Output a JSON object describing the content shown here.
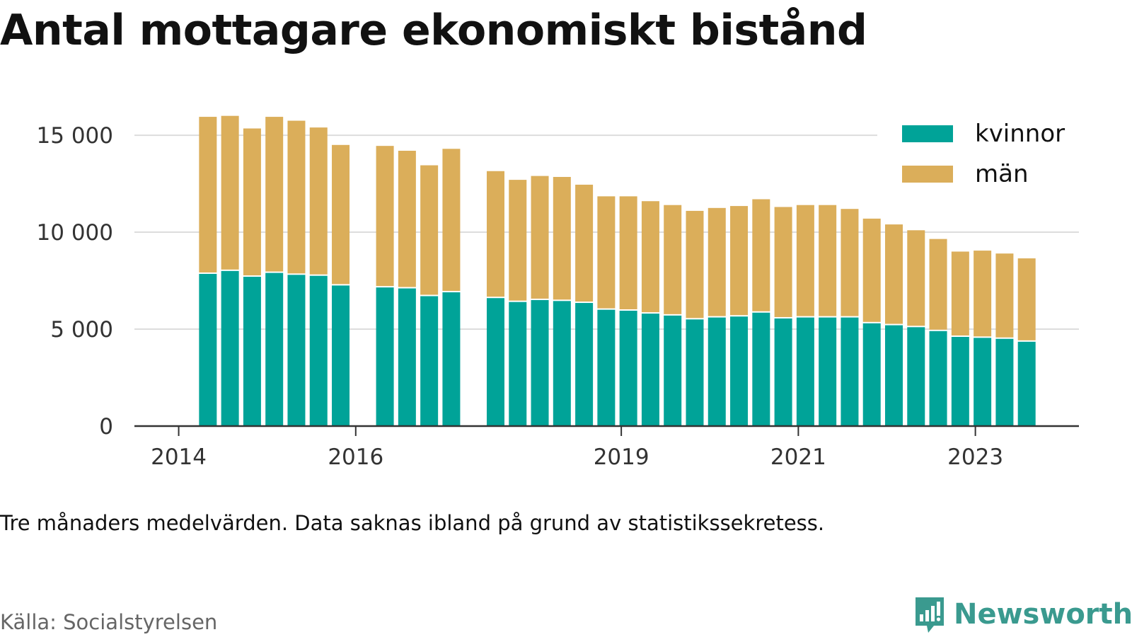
{
  "chart_data": {
    "type": "bar",
    "stacked": true,
    "title": "Antal mottagare ekonomiskt bistånd",
    "xlabel": "",
    "ylabel": "",
    "ylim": [
      0,
      16500
    ],
    "y_ticks": [
      {
        "value": 0,
        "label": "0"
      },
      {
        "value": 5000,
        "label": "5 000"
      },
      {
        "value": 10000,
        "label": "10 000"
      },
      {
        "value": 15000,
        "label": "15 000"
      }
    ],
    "x_ticks": [
      {
        "value": 2014.0,
        "label": "2014"
      },
      {
        "value": 2016.0,
        "label": "2016"
      },
      {
        "value": 2019.0,
        "label": "2019"
      },
      {
        "value": 2021.0,
        "label": "2021"
      },
      {
        "value": 2023.0,
        "label": "2023"
      }
    ],
    "xlim": [
      2013.5,
      2024.17
    ],
    "grid": true,
    "legend_position": "top-right",
    "x": [
      2014.33,
      2014.58,
      2014.83,
      2015.08,
      2015.33,
      2015.58,
      2015.83,
      2016.33,
      2016.58,
      2016.83,
      2017.08,
      2017.58,
      2017.83,
      2018.08,
      2018.33,
      2018.58,
      2018.83,
      2019.08,
      2019.33,
      2019.58,
      2019.83,
      2020.08,
      2020.33,
      2020.58,
      2020.83,
      2021.08,
      2021.33,
      2021.58,
      2021.83,
      2022.08,
      2022.33,
      2022.58,
      2022.83,
      2023.08,
      2023.33,
      2023.58
    ],
    "series": [
      {
        "name": "kvinnor",
        "color": "#00a398",
        "values": [
          7850,
          8000,
          7700,
          7900,
          7800,
          7750,
          7250,
          7150,
          7100,
          6700,
          6900,
          6600,
          6400,
          6500,
          6450,
          6350,
          6000,
          5950,
          5800,
          5700,
          5500,
          5600,
          5650,
          5850,
          5550,
          5600,
          5600,
          5600,
          5300,
          5200,
          5100,
          4900,
          4600,
          4550,
          4500,
          4350
        ]
      },
      {
        "name": "män",
        "color": "#dbae5a",
        "values": [
          8100,
          8000,
          7650,
          8050,
          7950,
          7650,
          7250,
          7300,
          7100,
          6750,
          7400,
          6550,
          6300,
          6400,
          6400,
          6100,
          5850,
          5900,
          5800,
          5700,
          5600,
          5650,
          5700,
          5850,
          5750,
          5800,
          5800,
          5600,
          5400,
          5200,
          5000,
          4750,
          4400,
          4500,
          4400,
          4300
        ]
      }
    ],
    "note": "Tre månaders medelvärden. Data saknas ibland på grund av statistikssekretess.",
    "source": "Källa: Socialstyrelsen"
  },
  "brand": {
    "name": "Newsworthy",
    "logo_icon": "bar-chart-speech-bubble-icon",
    "color": "#3a9a8f"
  }
}
